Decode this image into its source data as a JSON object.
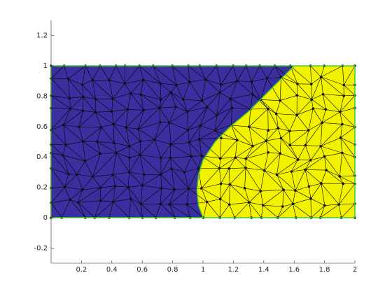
{
  "chart_data": {
    "type": "mesh",
    "xlim": [
      0,
      2
    ],
    "ylim": [
      -0.3,
      1.3
    ],
    "xticks": [
      0.2,
      0.4,
      0.6,
      0.8,
      1,
      1.2,
      1.4,
      1.6,
      1.8,
      2
    ],
    "yticks": [
      -0.2,
      0,
      0.2,
      0.4,
      0.6,
      0.8,
      1,
      1.2
    ],
    "domain": {
      "x": [
        0,
        2
      ],
      "y": [
        0,
        1
      ]
    },
    "boundary": {
      "x": [
        1.6,
        1.45,
        1.3,
        1.18,
        1.08,
        1.0,
        0.97,
        0.96,
        0.97,
        1.0
      ],
      "y": [
        1,
        0.85,
        0.7,
        0.6,
        0.5,
        0.38,
        0.28,
        0.18,
        0.08,
        0
      ]
    },
    "region_colors": [
      "#3b2e9e",
      "#f2f200"
    ],
    "edge_color": "#44c92f"
  }
}
